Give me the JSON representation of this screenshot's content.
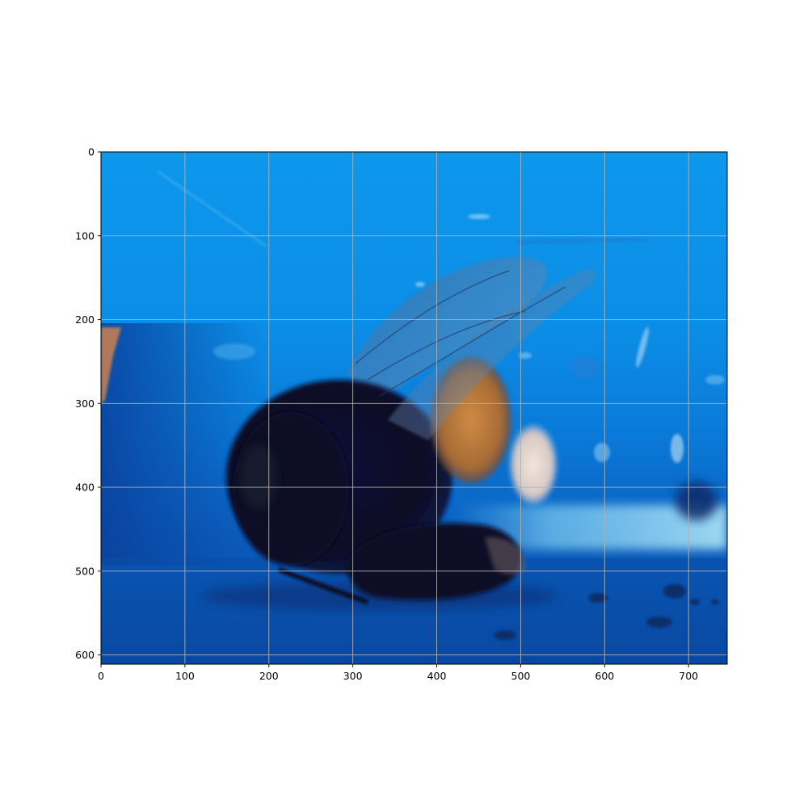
{
  "image": {
    "subject": "bumblebee-on-blue-surface",
    "palette": {
      "background_blue": "#0f95e8",
      "deep_blue": "#0a4fb0",
      "bee_body": "#0b0b24",
      "bee_orange_band": "#b8793a",
      "bee_white_tail": "#e8dcd0",
      "wing": "#7f9fc0",
      "highlight_band": "#8fd4f2"
    }
  },
  "axes": {
    "x_range": [
      0,
      746
    ],
    "y_range": [
      611,
      0
    ],
    "y_inverted": true,
    "grid": true,
    "grid_color": "#b0b0b0",
    "x_ticks": [
      "0",
      "100",
      "200",
      "300",
      "400",
      "500",
      "600",
      "700"
    ],
    "y_ticks": [
      "0",
      "100",
      "200",
      "300",
      "400",
      "500",
      "600"
    ]
  }
}
